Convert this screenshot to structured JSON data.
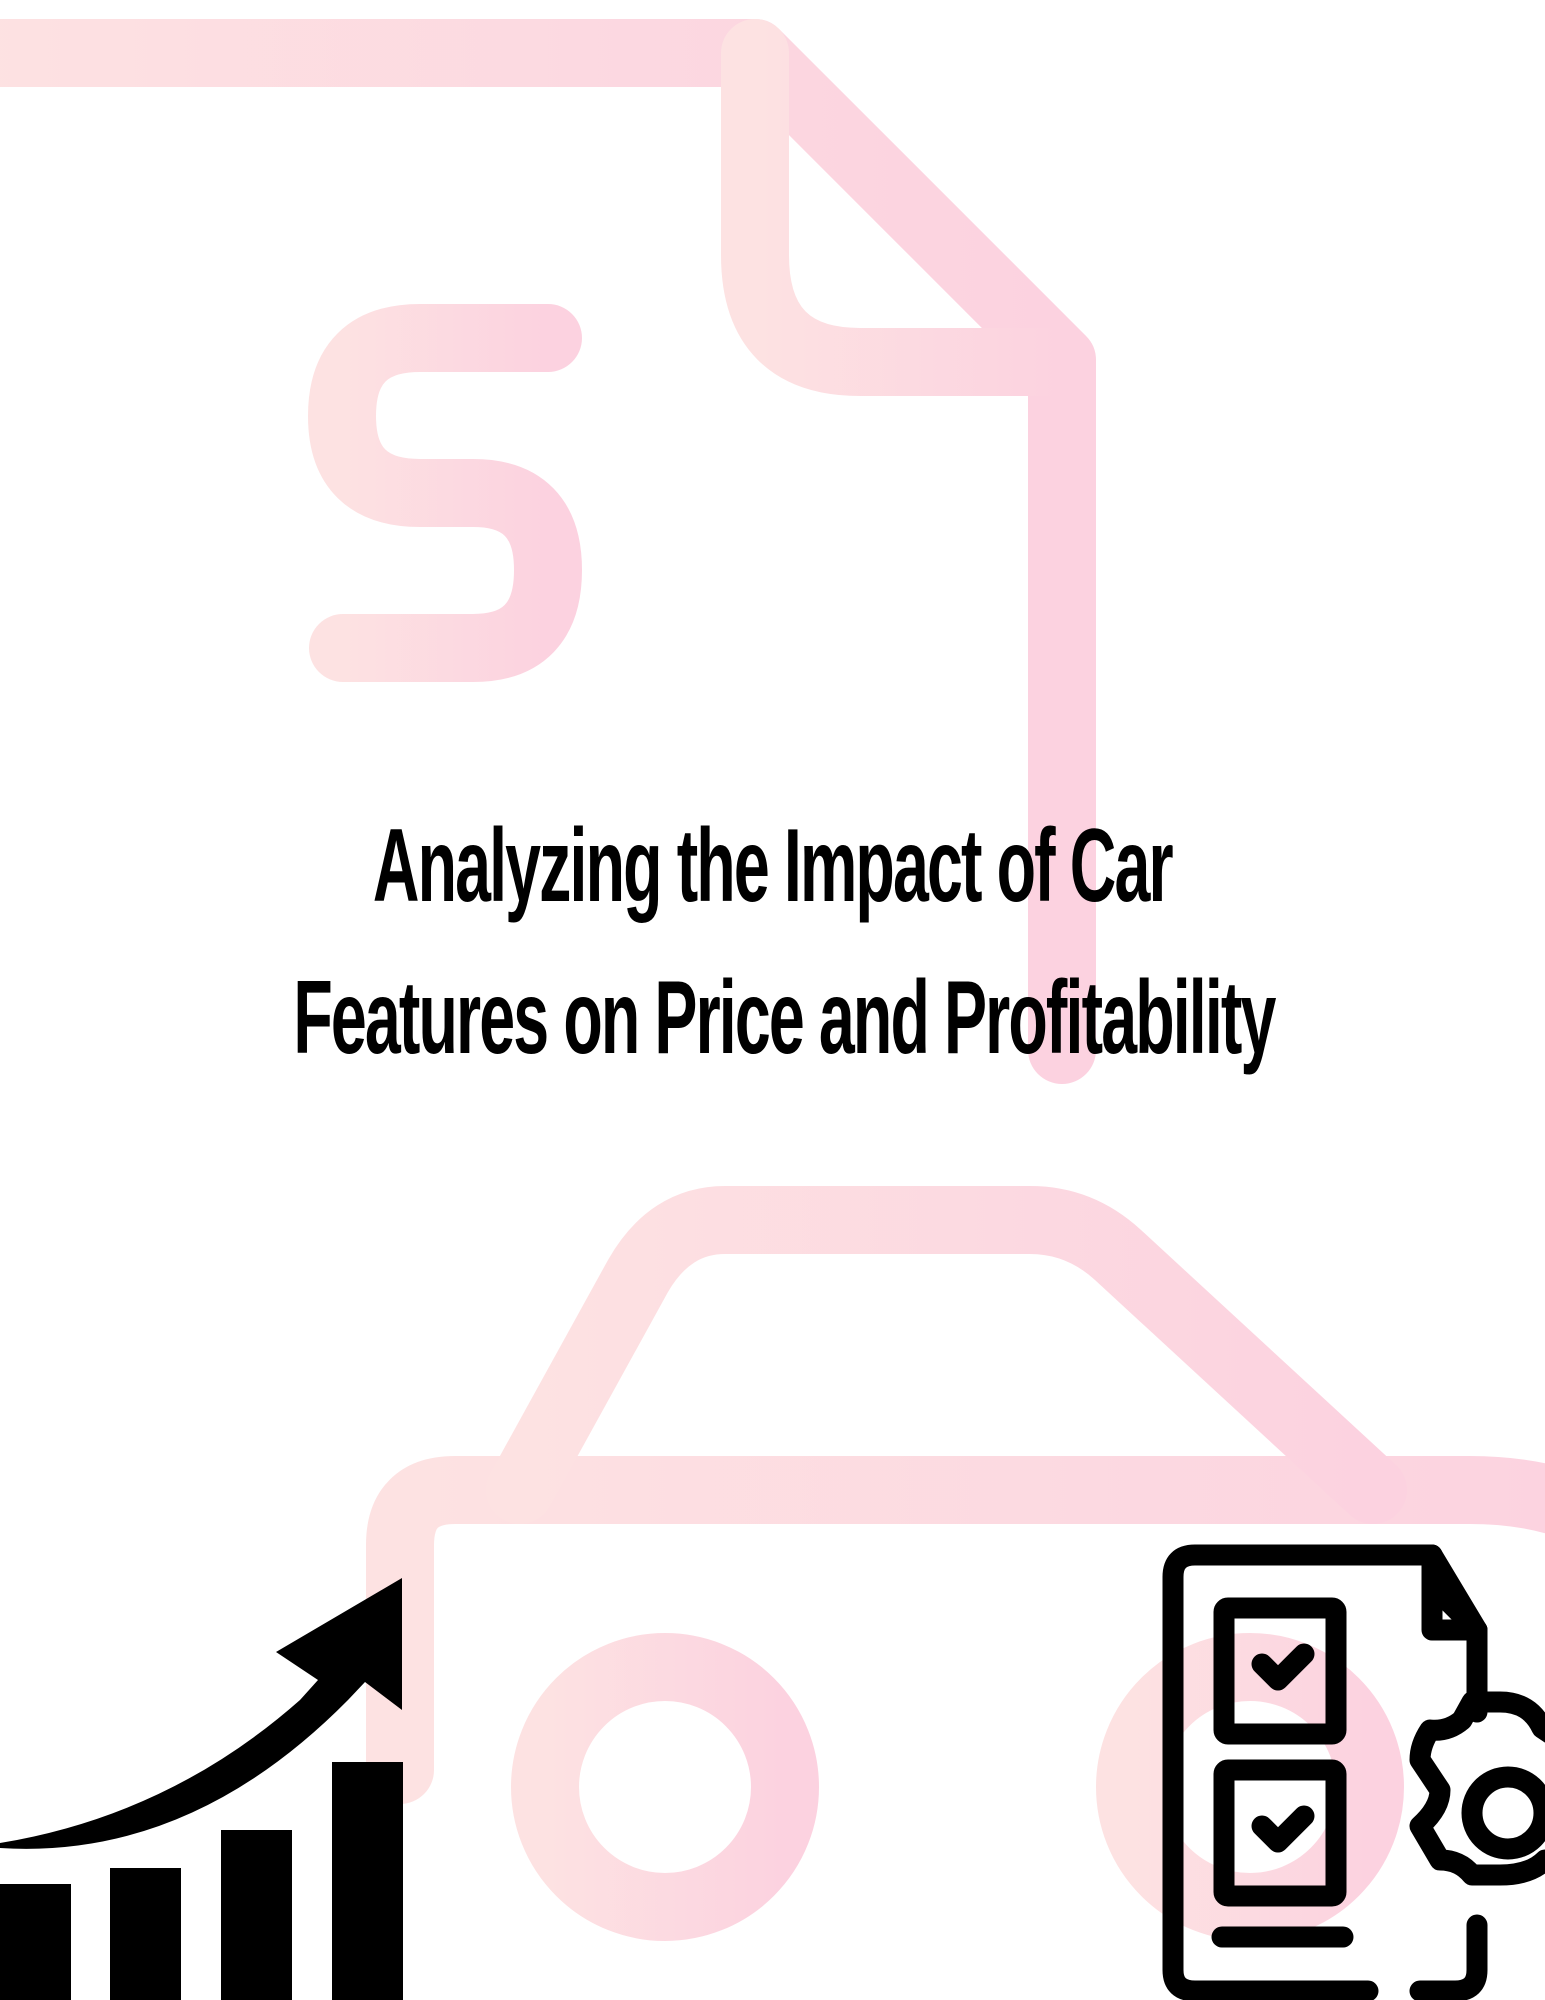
{
  "page": {
    "title_line_1": "Analyzing the Impact of Car",
    "title_line_2": "Features on Price and Profitability"
  },
  "colors": {
    "background": "#ffffff",
    "watermark_pink": "#fdd5df",
    "ink": "#000000"
  },
  "icons": {
    "background_document": "document-icon",
    "background_dollar": "dollar-sign-icon",
    "background_car": "car-icon",
    "growth_chart": "growth-chart-icon",
    "growth_arrow": "trend-arrow-icon",
    "checklist": "checklist-document-icon",
    "gear": "gear-icon"
  }
}
